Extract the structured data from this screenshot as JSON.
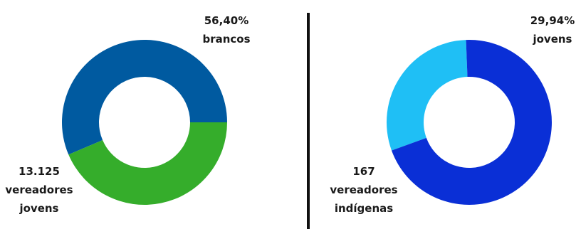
{
  "chart_data": [
    {
      "type": "pie",
      "donut": true,
      "slices": [
        {
          "value": 56.4,
          "color": "#005aa0"
        },
        {
          "value": 43.6,
          "color": "#35ad2b"
        }
      ],
      "annotations": {
        "top_right": [
          "56,40%",
          "brancos"
        ],
        "bottom_left": [
          "13.125",
          "vereadores",
          "jovens"
        ]
      }
    },
    {
      "type": "pie",
      "donut": true,
      "slices": [
        {
          "value": 29.94,
          "color": "#1fbff5"
        },
        {
          "value": 70.06,
          "color": "#0a2fd6"
        }
      ],
      "annotations": {
        "top_right": [
          "29,94%",
          "jovens"
        ],
        "bottom_left": [
          "167",
          "vereadores",
          "indígenas"
        ]
      }
    }
  ],
  "divider_color": "#111111"
}
